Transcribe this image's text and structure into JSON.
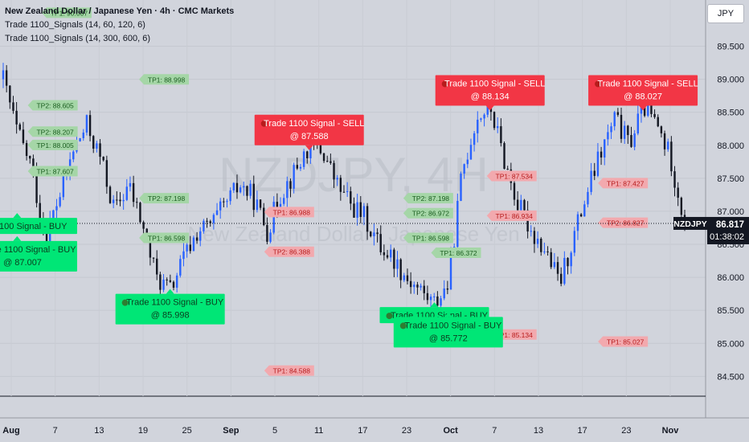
{
  "legend": {
    "symbol_title": "New Zealand Dollar / Japanese Yen · 4h · CMC Markets",
    "indicator_1": "Trade 1100_Signals (14, 60, 120, 6)",
    "indicator_2": "Trade 1100_Signals (14, 300, 600, 6)"
  },
  "currency_button": "JPY",
  "watermark": {
    "main": "NZDJPY, 4H",
    "sub": "New Zealand Dollar / Japanese Yen"
  },
  "last_price": {
    "symbol": "NZDJPY",
    "price": "86.817",
    "countdown": "01:38:02"
  },
  "colors": {
    "background": "#d1d4dc",
    "bull": "#2962ff",
    "bear": "#131722",
    "sell": "#f23645",
    "buy": "#00e676"
  },
  "chart_data": {
    "type": "candlestick",
    "y_axis": {
      "min": 84.2,
      "max": 90.2,
      "ticks": [
        "84.500",
        "85.000",
        "85.500",
        "86.000",
        "86.500",
        "87.000",
        "87.500",
        "88.000",
        "88.500",
        "89.000",
        "89.500"
      ]
    },
    "x_axis": {
      "ticks": [
        "Aug",
        "7",
        "13",
        "19",
        "25",
        "Sep",
        "5",
        "11",
        "17",
        "23",
        "Oct",
        "7",
        "13",
        "17",
        "23",
        "Nov"
      ]
    },
    "close_path": [
      89.0,
      88.2,
      87.7,
      86.6,
      87.2,
      87.9,
      88.3,
      87.8,
      87.0,
      87.4,
      86.8,
      86.0,
      85.8,
      86.3,
      86.7,
      86.8,
      87.1,
      87.4,
      87.2,
      86.7,
      87.3,
      87.6,
      88.0,
      87.9,
      87.4,
      87.1,
      86.9,
      86.5,
      86.3,
      86.0,
      85.8,
      85.6,
      85.9,
      87.6,
      88.4,
      88.6,
      87.8,
      87.1,
      86.7,
      86.4,
      85.9,
      86.6,
      87.3,
      87.9,
      88.4,
      88.0,
      88.6,
      88.3,
      87.8,
      86.8
    ],
    "signals": [
      {
        "type": "sell",
        "text": "Trade 1100 Signal - SELL",
        "price_text": "@ 87.588",
        "price": 88.0,
        "anchor_i": 22
      },
      {
        "type": "sell",
        "text": "Trade 1100 Signal - SELL",
        "price_text": "@ 88.134",
        "price": 88.6,
        "anchor_i": 35
      },
      {
        "type": "sell",
        "text": "Trade 1100 Signal - SELL",
        "price_text": "@ 88.027",
        "price": 88.6,
        "anchor_i": 46
      },
      {
        "type": "buy",
        "text": "e 1100 Signal - BUY",
        "price_text": "",
        "price": 86.9,
        "anchor_i": 1
      },
      {
        "type": "buy",
        "text": "Trade 1100 Signal - BUY",
        "price_text": "@ 87.007",
        "price": 86.55,
        "anchor_i": 1
      },
      {
        "type": "buy",
        "text": "Trade 1100 Signal - BUY",
        "price_text": "@ 85.998",
        "price": 85.75,
        "anchor_i": 12
      },
      {
        "type": "buy",
        "text": "Trade 1100 Signal - BUY",
        "price_text": "",
        "price": 85.55,
        "anchor_i": 31
      },
      {
        "type": "buy",
        "text": "Trade 1100 Signal - BUY",
        "price_text": "@ 85.772",
        "price": 85.4,
        "anchor_i": 32
      }
    ],
    "tp_labels": [
      {
        "text": "TP1: 90.007",
        "price": 90.007,
        "side": "buy",
        "x_i": 3
      },
      {
        "text": "TP1: 88.998",
        "price": 88.998,
        "side": "buy",
        "x_i": 10
      },
      {
        "text": "TP2: 88.605",
        "price": 88.605,
        "side": "buy",
        "x_i": 2
      },
      {
        "text": "TP2: 88.207",
        "price": 88.207,
        "side": "buy",
        "x_i": 2
      },
      {
        "text": "TP1: 88.005",
        "price": 88.005,
        "side": "buy",
        "x_i": 2
      },
      {
        "text": "TP1: 87.607",
        "price": 87.607,
        "side": "buy",
        "x_i": 2
      },
      {
        "text": "TP2: 87.198",
        "price": 87.198,
        "side": "buy",
        "x_i": 10
      },
      {
        "text": "TP1: 86.598",
        "price": 86.598,
        "side": "buy",
        "x_i": 10
      },
      {
        "text": "TP1: 86.988",
        "price": 86.988,
        "side": "sell",
        "x_i": 19
      },
      {
        "text": "TP2: 86.388",
        "price": 86.388,
        "side": "sell",
        "x_i": 19
      },
      {
        "text": "TP1: 84.588",
        "price": 84.588,
        "side": "sell",
        "x_i": 19
      },
      {
        "text": "TP2: 87.198",
        "price": 87.198,
        "side": "buy",
        "x_i": 29
      },
      {
        "text": "TP2: 86.972",
        "price": 86.972,
        "side": "buy",
        "x_i": 29
      },
      {
        "text": "TP1: 86.598",
        "price": 86.598,
        "side": "buy",
        "x_i": 29
      },
      {
        "text": "TP1: 86.372",
        "price": 86.372,
        "side": "buy",
        "x_i": 31
      },
      {
        "text": "TP1: 87.534",
        "price": 87.534,
        "side": "sell",
        "x_i": 35
      },
      {
        "text": "TP1: 86.934",
        "price": 86.934,
        "side": "sell",
        "x_i": 35
      },
      {
        "text": "TP1: 85.134",
        "price": 85.134,
        "side": "sell",
        "x_i": 35
      },
      {
        "text": "TP1: 87.427",
        "price": 87.427,
        "side": "sell",
        "x_i": 43
      },
      {
        "text": "TP2: 86.827",
        "price": 86.827,
        "side": "sell",
        "x_i": 43
      },
      {
        "text": "TP1: 85.027",
        "price": 85.027,
        "side": "sell",
        "x_i": 43
      }
    ]
  }
}
